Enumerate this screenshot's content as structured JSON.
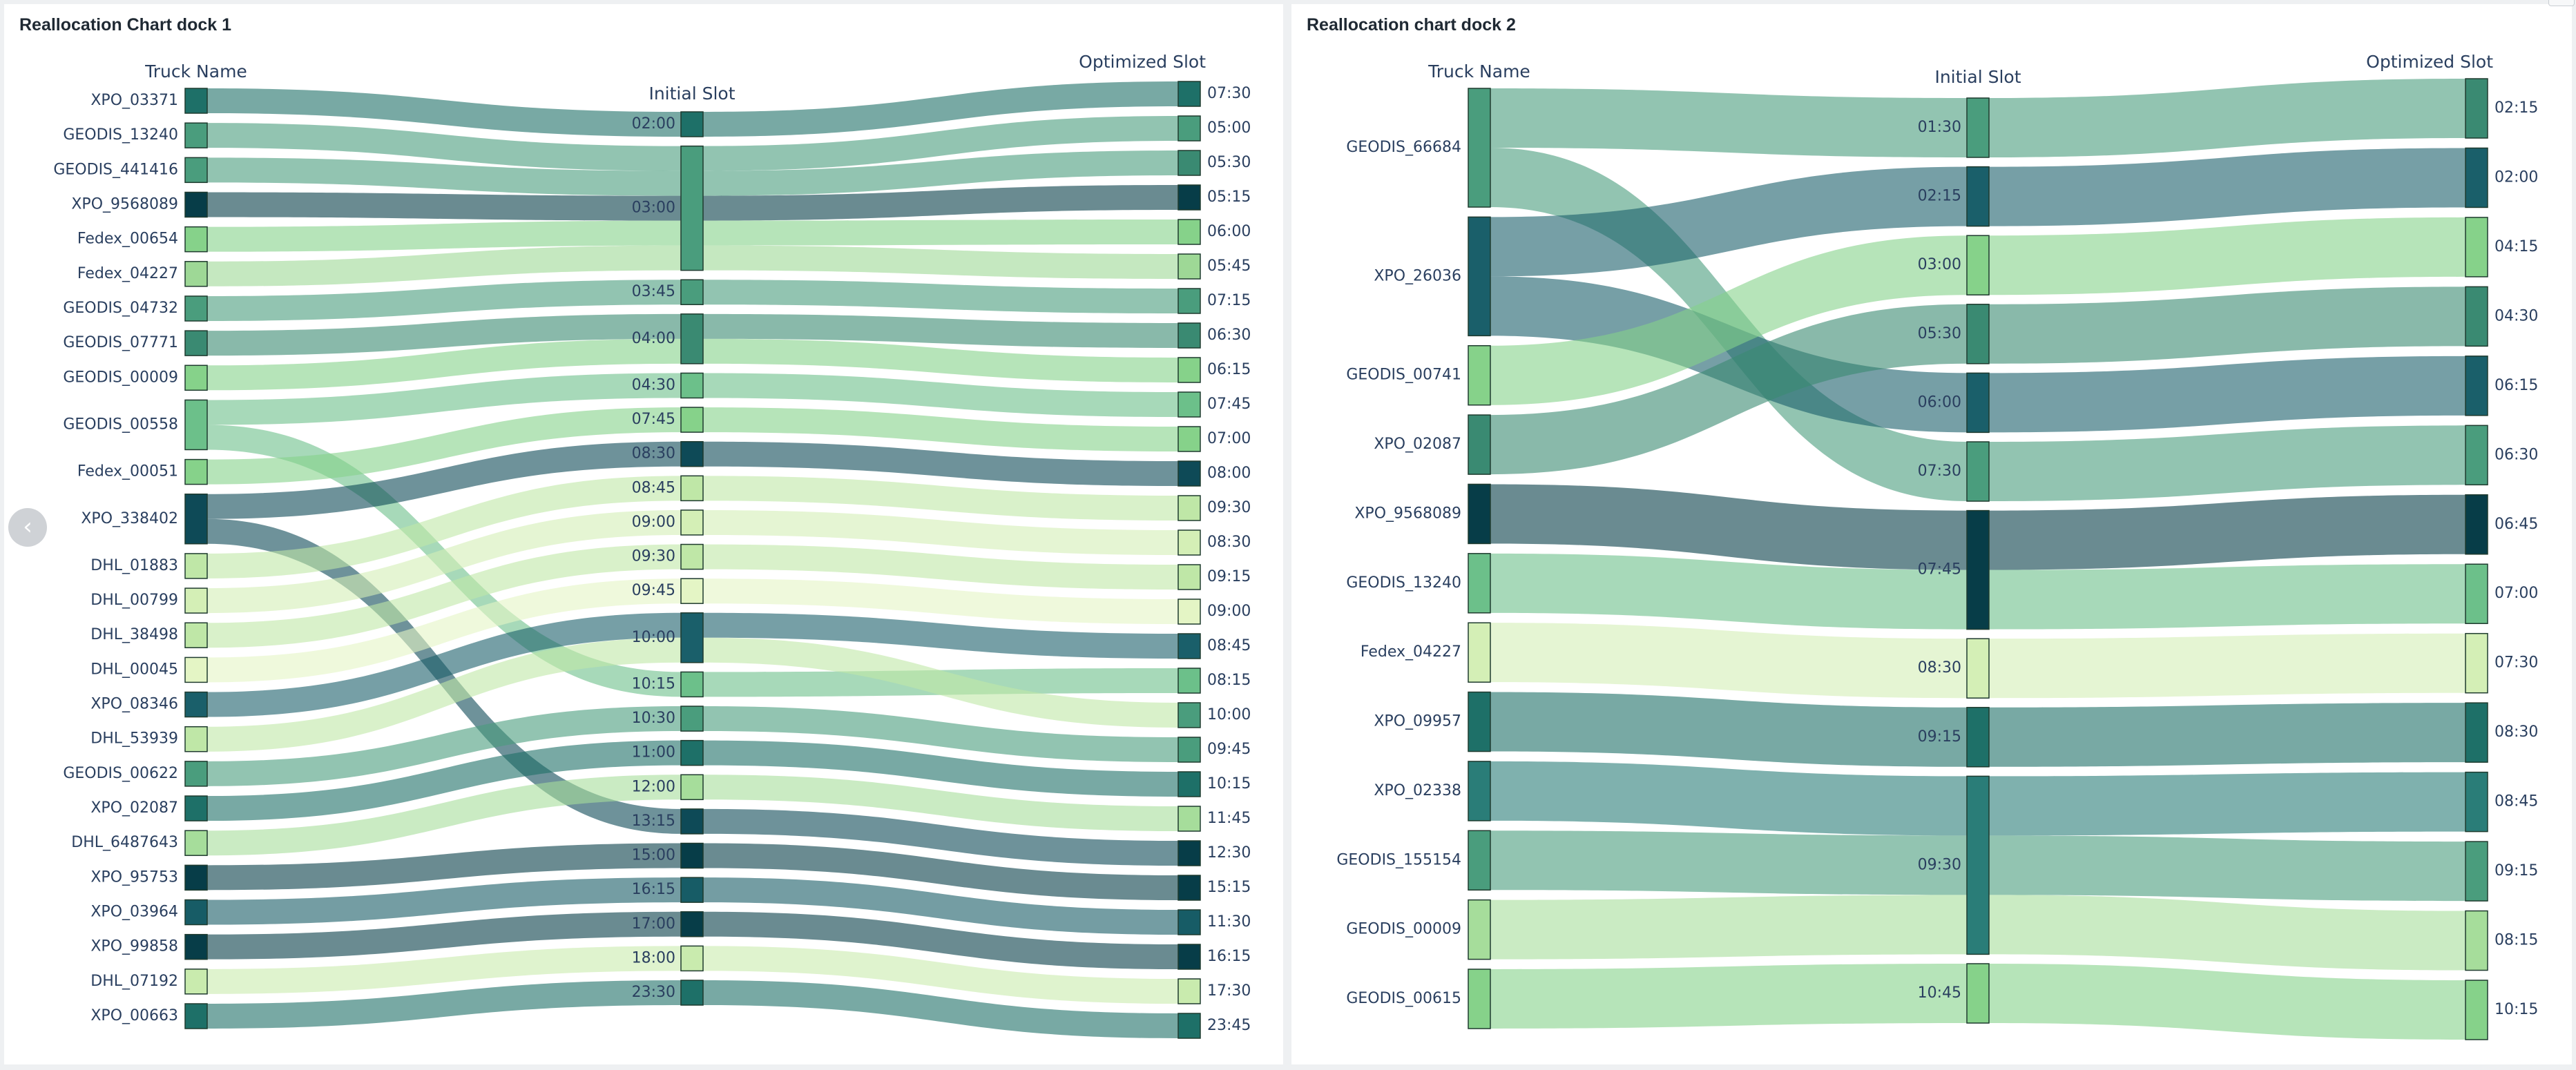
{
  "nav": {
    "prev_icon": "‹"
  },
  "charts": [
    {
      "title": "Reallocation Chart dock 1",
      "chart_data": {
        "type": "sankey",
        "column_headers": [
          "Truck Name",
          "Initial Slot",
          "Optimized Slot"
        ],
        "trucks": [
          {
            "name": "XPO_03371",
            "color": "#1e7068"
          },
          {
            "name": "GEODIS_13240",
            "color": "#4a9d7d"
          },
          {
            "name": "GEODIS_441416",
            "color": "#4a9d7d"
          },
          {
            "name": "XPO_9568089",
            "color": "#073d48"
          },
          {
            "name": "Fedex_00654",
            "color": "#86d28a"
          },
          {
            "name": "Fedex_04227",
            "color": "#9ed896"
          },
          {
            "name": "GEODIS_04732",
            "color": "#4a9d7d"
          },
          {
            "name": "GEODIS_07771",
            "color": "#3a8a72"
          },
          {
            "name": "GEODIS_00009",
            "color": "#86d28a"
          },
          {
            "name": "GEODIS_00558",
            "color": "#6cc08a"
          },
          {
            "name": "Fedex_00051",
            "color": "#86d28a"
          },
          {
            "name": "XPO_338402",
            "color": "#0e4a57"
          },
          {
            "name": "DHL_01883",
            "color": "#bfe7a7"
          },
          {
            "name": "DHL_00799",
            "color": "#d4efb6"
          },
          {
            "name": "DHL_38498",
            "color": "#bfe7a7"
          },
          {
            "name": "DHL_00045",
            "color": "#e4f5c5"
          },
          {
            "name": "XPO_08346",
            "color": "#1a5f6a"
          },
          {
            "name": "DHL_53939",
            "color": "#bfe7a7"
          },
          {
            "name": "GEODIS_00622",
            "color": "#4a9d7d"
          },
          {
            "name": "XPO_02087",
            "color": "#1e7068"
          },
          {
            "name": "DHL_6487643",
            "color": "#a6dd9b"
          },
          {
            "name": "XPO_95753",
            "color": "#073d48"
          },
          {
            "name": "XPO_03964",
            "color": "#175c66"
          },
          {
            "name": "XPO_99858",
            "color": "#073d48"
          },
          {
            "name": "DHL_07192",
            "color": "#c9ebae"
          },
          {
            "name": "XPO_00663",
            "color": "#1e7068"
          }
        ],
        "initial_slots": [
          {
            "label": "02:00",
            "showLabel": true
          },
          {
            "label": "03:00",
            "showLabel": true
          },
          {
            "label": "03:45",
            "showLabel": true
          },
          {
            "label": "04:00",
            "showLabel": true
          },
          {
            "label": "04:30",
            "showLabel": true
          },
          {
            "label": "07:45",
            "showLabel": true
          },
          {
            "label": "08:30",
            "showLabel": true
          },
          {
            "label": "08:45",
            "showLabel": true
          },
          {
            "label": "09:00",
            "showLabel": true
          },
          {
            "label": "09:30",
            "showLabel": true
          },
          {
            "label": "09:45",
            "showLabel": true
          },
          {
            "label": "10:00",
            "showLabel": true
          },
          {
            "label": "10:15",
            "showLabel": true
          },
          {
            "label": "10:30",
            "showLabel": true
          },
          {
            "label": "11:00",
            "showLabel": true
          },
          {
            "label": "12:00",
            "showLabel": true
          },
          {
            "label": "13:15",
            "showLabel": true
          },
          {
            "label": "15:00",
            "showLabel": true
          },
          {
            "label": "16:15",
            "showLabel": true
          },
          {
            "label": "17:00",
            "showLabel": true
          },
          {
            "label": "18:00",
            "showLabel": true
          },
          {
            "label": "23:30",
            "showLabel": true
          }
        ],
        "optimized_slots": [
          {
            "label": "07:30",
            "color": "#1e7068"
          },
          {
            "label": "05:00",
            "color": "#4a9d7d"
          },
          {
            "label": "05:30",
            "color": "#3a8a72"
          },
          {
            "label": "05:15",
            "color": "#073d48"
          },
          {
            "label": "06:00",
            "color": "#86d28a"
          },
          {
            "label": "05:45",
            "color": "#9ed896"
          },
          {
            "label": "07:15",
            "color": "#4a9d7d"
          },
          {
            "label": "06:30",
            "color": "#3a8a72"
          },
          {
            "label": "06:15",
            "color": "#86d28a"
          },
          {
            "label": "07:45",
            "color": "#6cc08a"
          },
          {
            "label": "07:00",
            "color": "#86d28a"
          },
          {
            "label": "08:00",
            "color": "#0e4a57"
          },
          {
            "label": "09:30",
            "color": "#bfe7a7"
          },
          {
            "label": "08:30",
            "color": "#d4efb6"
          },
          {
            "label": "09:15",
            "color": "#bfe7a7"
          },
          {
            "label": "09:00",
            "color": "#e4f5c5"
          },
          {
            "label": "08:45",
            "color": "#1a5f6a"
          },
          {
            "label": "08:15",
            "color": "#6cc08a"
          },
          {
            "label": "10:00",
            "color": "#4a9d7d"
          },
          {
            "label": "09:45",
            "color": "#4a9d7d"
          },
          {
            "label": "10:15",
            "color": "#1e7068"
          },
          {
            "label": "11:45",
            "color": "#a6dd9b"
          },
          {
            "label": "12:30",
            "color": "#073d48"
          },
          {
            "label": "15:15",
            "color": "#073d48"
          },
          {
            "label": "11:30",
            "color": "#175c66"
          },
          {
            "label": "16:15",
            "color": "#073d48"
          },
          {
            "label": "17:30",
            "color": "#c9ebae"
          },
          {
            "label": "23:45",
            "color": "#1e7068"
          }
        ],
        "flows": [
          [
            0,
            0,
            0
          ],
          [
            1,
            1,
            1
          ],
          [
            2,
            1,
            2
          ],
          [
            3,
            1,
            3
          ],
          [
            4,
            1,
            4
          ],
          [
            5,
            1,
            5
          ],
          [
            6,
            2,
            6
          ],
          [
            7,
            3,
            7
          ],
          [
            8,
            3,
            8
          ],
          [
            9,
            4,
            9
          ],
          [
            9,
            12,
            17
          ],
          [
            10,
            5,
            10
          ],
          [
            11,
            6,
            11
          ],
          [
            11,
            16,
            22
          ],
          [
            12,
            7,
            12
          ],
          [
            13,
            8,
            13
          ],
          [
            14,
            9,
            14
          ],
          [
            15,
            10,
            15
          ],
          [
            16,
            11,
            16
          ],
          [
            17,
            11,
            18
          ],
          [
            18,
            13,
            19
          ],
          [
            19,
            14,
            20
          ],
          [
            20,
            15,
            21
          ],
          [
            21,
            17,
            23
          ],
          [
            22,
            18,
            24
          ],
          [
            23,
            19,
            25
          ],
          [
            24,
            20,
            26
          ],
          [
            25,
            21,
            27
          ]
        ]
      }
    },
    {
      "title": "Reallocation chart dock 2",
      "chart_data": {
        "type": "sankey",
        "column_headers": [
          "Truck Name",
          "Initial Slot",
          "Optimized Slot"
        ],
        "trucks": [
          {
            "name": "GEODIS_66684",
            "color": "#4a9d7d"
          },
          {
            "name": "XPO_26036",
            "color": "#1a5f6a"
          },
          {
            "name": "GEODIS_00741",
            "color": "#86d28a"
          },
          {
            "name": "XPO_02087",
            "color": "#3a8a72"
          },
          {
            "name": "XPO_9568089",
            "color": "#073d48"
          },
          {
            "name": "GEODIS_13240",
            "color": "#6cc08a"
          },
          {
            "name": "Fedex_04227",
            "color": "#d4efb6"
          },
          {
            "name": "XPO_09957",
            "color": "#1e7068"
          },
          {
            "name": "XPO_02338",
            "color": "#2a7d78"
          },
          {
            "name": "GEODIS_155154",
            "color": "#4a9d7d"
          },
          {
            "name": "GEODIS_00009",
            "color": "#a6dd9b"
          },
          {
            "name": "GEODIS_00615",
            "color": "#86d28a"
          }
        ],
        "initial_slots": [
          {
            "label": "01:30",
            "showLabel": true
          },
          {
            "label": "02:15",
            "showLabel": true
          },
          {
            "label": "03:00",
            "showLabel": true
          },
          {
            "label": "05:30",
            "showLabel": true
          },
          {
            "label": "06:00",
            "showLabel": true
          },
          {
            "label": "07:30",
            "showLabel": true
          },
          {
            "label": "07:45",
            "showLabel": true
          },
          {
            "label": "08:30",
            "showLabel": true
          },
          {
            "label": "09:15",
            "showLabel": true
          },
          {
            "label": "09:30",
            "showLabel": true
          },
          {
            "label": "10:45",
            "showLabel": true
          }
        ],
        "optimized_slots": [
          {
            "label": "02:15",
            "color": "#3a8a72"
          },
          {
            "label": "02:00",
            "color": "#1a5f6a"
          },
          {
            "label": "04:15",
            "color": "#86d28a"
          },
          {
            "label": "04:30",
            "color": "#3a8a72"
          },
          {
            "label": "06:15",
            "color": "#1a5f6a"
          },
          {
            "label": "06:30",
            "color": "#4a9d7d"
          },
          {
            "label": "06:45",
            "color": "#073d48"
          },
          {
            "label": "07:00",
            "color": "#6cc08a"
          },
          {
            "label": "07:30",
            "color": "#d4efb6"
          },
          {
            "label": "08:30",
            "color": "#1e7068"
          },
          {
            "label": "08:45",
            "color": "#2a7d78"
          },
          {
            "label": "09:15",
            "color": "#4a9d7d"
          },
          {
            "label": "08:15",
            "color": "#a6dd9b"
          },
          {
            "label": "10:15",
            "color": "#86d28a"
          }
        ],
        "flows": [
          [
            0,
            0,
            0
          ],
          [
            0,
            5,
            5
          ],
          [
            1,
            1,
            1
          ],
          [
            1,
            4,
            4
          ],
          [
            2,
            2,
            2
          ],
          [
            3,
            3,
            3
          ],
          [
            4,
            6,
            6
          ],
          [
            5,
            6,
            7
          ],
          [
            6,
            7,
            8
          ],
          [
            7,
            8,
            9
          ],
          [
            8,
            9,
            10
          ],
          [
            9,
            9,
            11
          ],
          [
            10,
            9,
            12
          ],
          [
            11,
            10,
            13
          ]
        ]
      }
    }
  ]
}
